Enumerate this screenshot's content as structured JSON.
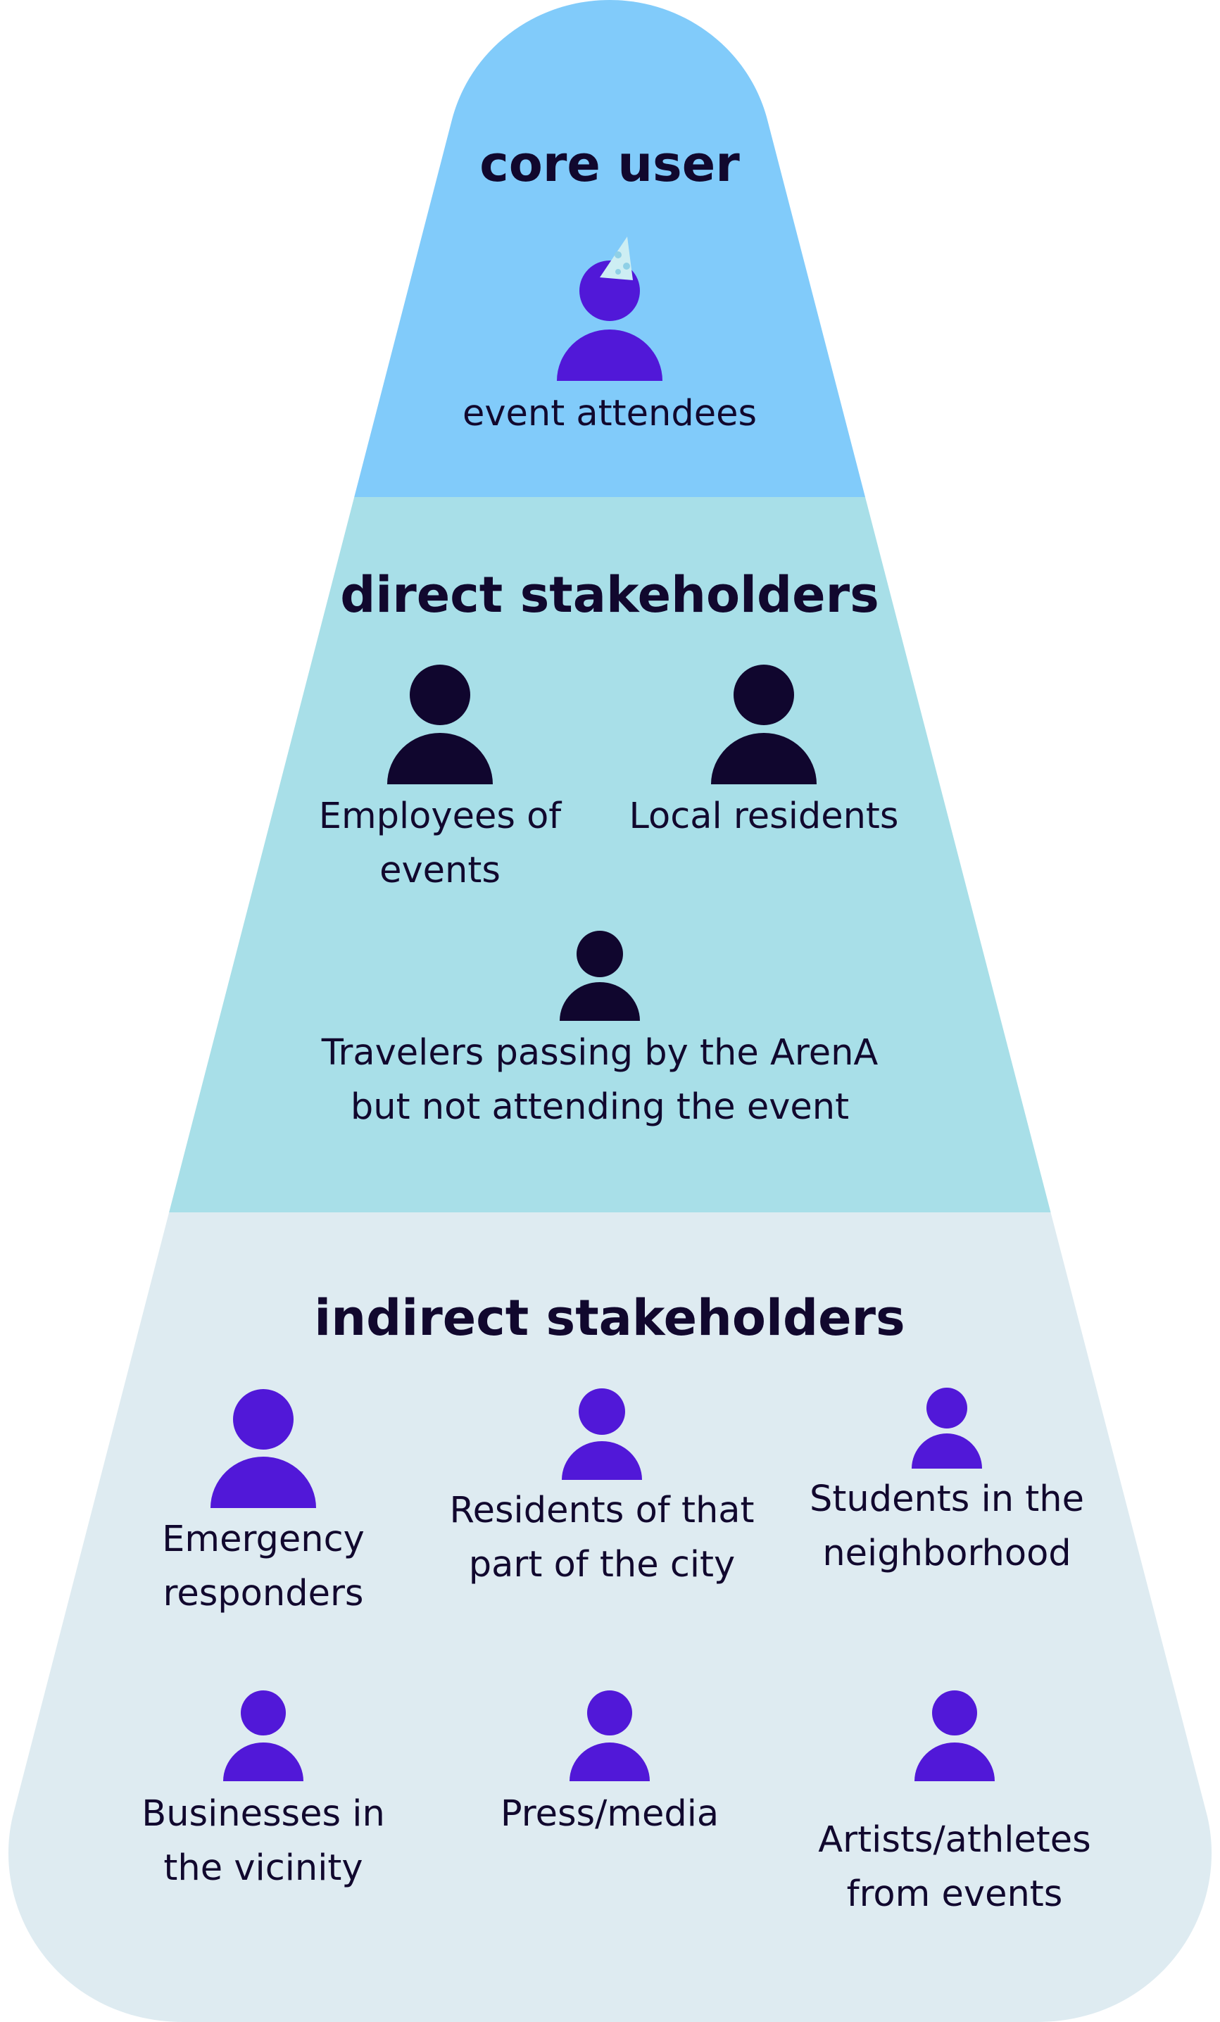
{
  "colors": {
    "core_band": "#81cbfa",
    "direct_band": "#a8dfe8",
    "indirect_band": "#deebf1",
    "core_icon": "#5118d8",
    "direct_icon": "#10062e",
    "indirect_icon": "#5118d8",
    "text": "#11082e",
    "party_hat": "#cdeef3",
    "party_hat_dots": "#8fd0e6"
  },
  "core": {
    "heading": "core user",
    "people": [
      {
        "label": "event attendees",
        "icon": "person-party-hat-icon"
      }
    ]
  },
  "direct": {
    "heading": "direct stakeholders",
    "people": [
      {
        "label_1": "Employees of",
        "label_2": "events",
        "icon": "person-icon"
      },
      {
        "label_1": "Local residents",
        "icon": "person-icon"
      },
      {
        "label_1": "Travelers passing by the ArenA",
        "label_2": "but not attending the event",
        "icon": "person-icon"
      }
    ]
  },
  "indirect": {
    "heading": "indirect stakeholders",
    "people": [
      {
        "label_1": "Emergency",
        "label_2": "responders",
        "icon": "person-icon"
      },
      {
        "label_1": "Residents of that",
        "label_2": "part of the city",
        "icon": "person-icon"
      },
      {
        "label_1": "Students in the",
        "label_2": "neighborhood",
        "icon": "person-icon"
      },
      {
        "label_1": "Businesses in",
        "label_2": "the vicinity",
        "icon": "person-icon"
      },
      {
        "label_1": "Press/media",
        "icon": "person-icon"
      },
      {
        "label_1": "Artists/athletes",
        "label_2": "from events",
        "icon": "person-icon"
      }
    ]
  }
}
